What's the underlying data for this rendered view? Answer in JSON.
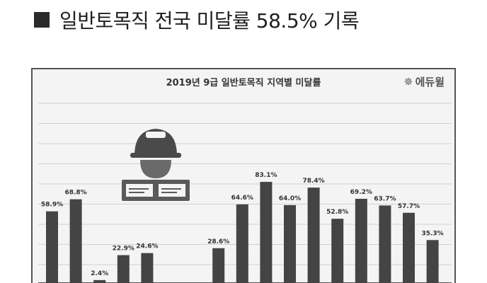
{
  "headline": {
    "text": "일반토목직 전국 미달률 58.5% 기록"
  },
  "chart": {
    "brand_text": "에듀윌",
    "brand_icon": "sunburst-icon",
    "illustration_icon": "construction-worker-icon"
  },
  "chart_data": {
    "type": "bar",
    "title": "2019년 9급 일반토목직 지역별 미달률",
    "xlabel": "",
    "ylabel": "",
    "ylim": [
      0,
      100
    ],
    "grid": true,
    "bar_color": "#444444",
    "values": [
      58.9,
      68.8,
      2.4,
      22.9,
      24.6,
      -3,
      -3,
      28.6,
      64.6,
      83.1,
      64.0,
      78.4,
      52.8,
      69.2,
      63.7,
      57.7,
      35.3
    ],
    "labels": [
      "58.9%",
      "68.8%",
      "2.4%",
      "22.9%",
      "24.6%",
      "",
      "",
      "28.6%",
      "64.6%",
      "83.1%",
      "64.0%",
      "78.4%",
      "52.8%",
      "69.2%",
      "63.7%",
      "57.7%",
      "35.3%"
    ]
  }
}
